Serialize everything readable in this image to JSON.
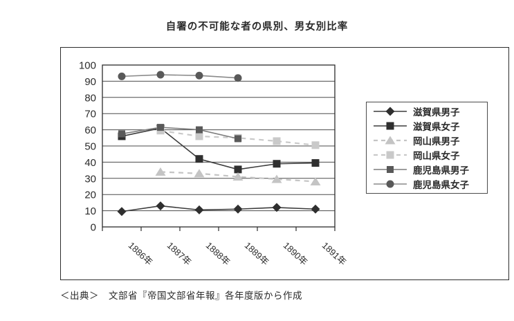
{
  "title": "自署の不可能な者の県別、男女別比率",
  "caption": "＜出典＞　文部省『帝国文部省年報』各年度版から作成",
  "colors": {
    "black_series": "#2f2f2f",
    "light_gray_series": "#c4c4c4",
    "dark_gray_series": "#595959",
    "grid_line": "#4a4a4a",
    "frame": "#2b2b2b"
  },
  "chart_data": {
    "type": "line",
    "title": "自署の不可能な者の県別、男女別比率",
    "categories": [
      "1886年",
      "1887年",
      "1888年",
      "1889年",
      "1890年",
      "1891年"
    ],
    "xlabel": "",
    "ylabel": "",
    "ylim": [
      0,
      100
    ],
    "yticks": [
      0,
      10,
      20,
      30,
      40,
      50,
      60,
      70,
      80,
      90,
      100
    ],
    "grid": "horizontal",
    "legend_position": "right",
    "series": [
      {
        "name": "滋賀県男子",
        "marker": "diamond",
        "line": "solid",
        "color": "#2f2f2f",
        "line_color": "#3c3c3c",
        "values": [
          9.5,
          13,
          10.5,
          11,
          12,
          11
        ]
      },
      {
        "name": "滋賀県女子",
        "marker": "square",
        "line": "solid",
        "color": "#2f2f2f",
        "line_color": "#3c3c3c",
        "values": [
          56,
          61,
          42,
          35.5,
          39,
          39.5
        ]
      },
      {
        "name": "岡山県男子",
        "marker": "triangle",
        "line": "dashed",
        "color": "#c4c4c4",
        "line_color": "#c4c4c4",
        "values": [
          null,
          34,
          33,
          31,
          29.5,
          28
        ]
      },
      {
        "name": "岡山県女子",
        "marker": "square",
        "line": "dashed",
        "color": "#c9c9c9",
        "line_color": "#c9c9c9",
        "values": [
          null,
          59.5,
          56,
          55,
          53,
          50.5
        ]
      },
      {
        "name": "鹿児島県男子",
        "marker": "square-small",
        "line": "solid",
        "color": "#595959",
        "line_color": "#7d7d7d",
        "values": [
          57.5,
          61.5,
          60,
          54.5,
          null,
          null
        ]
      },
      {
        "name": "鹿児島県女子",
        "marker": "circle",
        "line": "solid",
        "color": "#595959",
        "line_color": "#8a8a8a",
        "values": [
          93,
          94,
          93.5,
          92,
          null,
          null
        ]
      }
    ]
  }
}
